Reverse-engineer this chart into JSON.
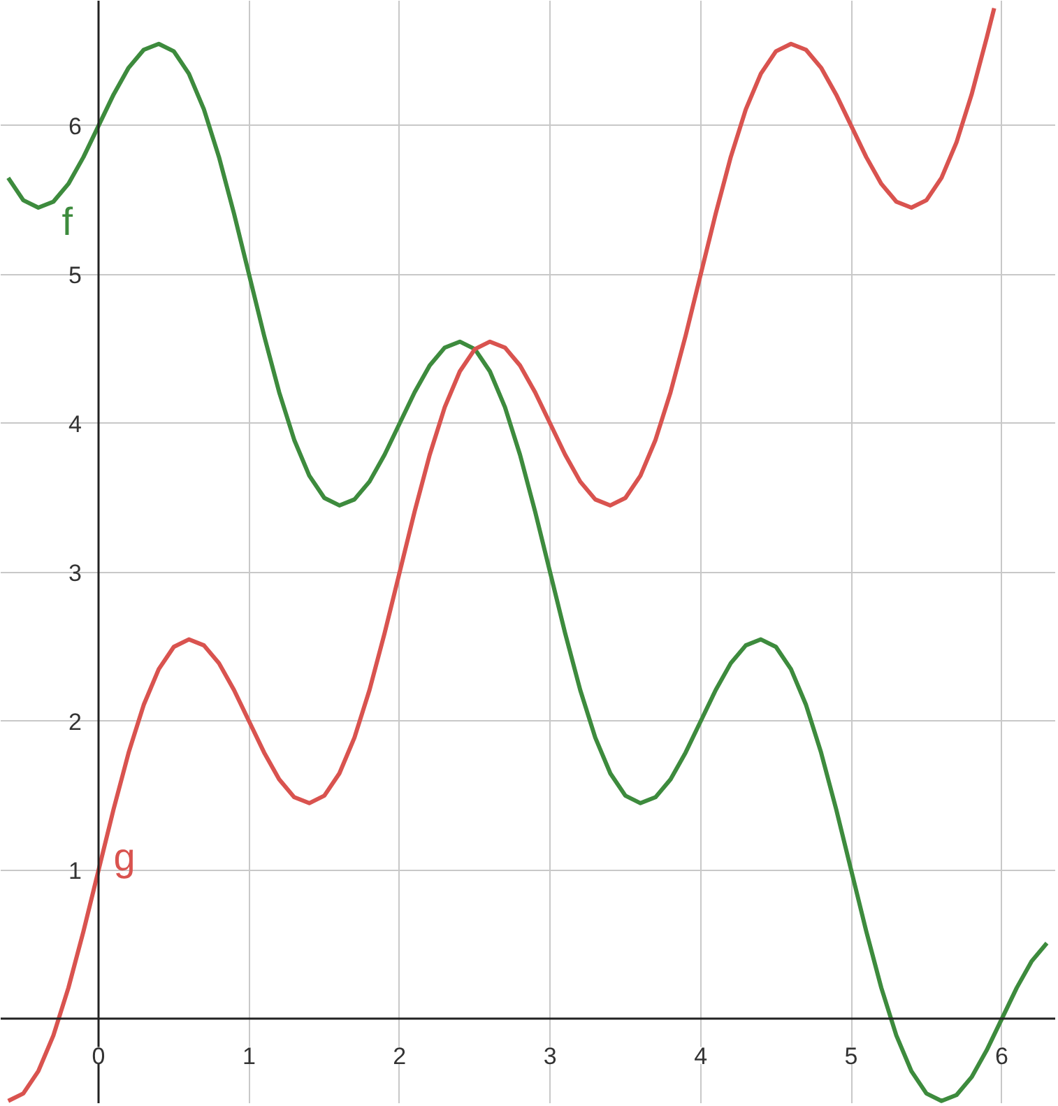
{
  "chart_data": {
    "type": "line",
    "xlim": [
      -0.65,
      6.36
    ],
    "ylim": [
      -0.57,
      6.84
    ],
    "xticks": [
      0,
      1,
      2,
      3,
      4,
      5,
      6
    ],
    "yticks": [
      1,
      2,
      3,
      4,
      5,
      6
    ],
    "grid": true,
    "series": [
      {
        "name": "f",
        "color": "#3d8b3d",
        "x": [
          -0.6,
          -0.5,
          -0.4,
          -0.3,
          -0.2,
          -0.1,
          0,
          0.1,
          0.2,
          0.3,
          0.4,
          0.5,
          0.6,
          0.7,
          0.8,
          0.9,
          1,
          1.1,
          1.2,
          1.3,
          1.4,
          1.5,
          1.6,
          1.7,
          1.8,
          1.9,
          2,
          2.1,
          2.2,
          2.3,
          2.4,
          2.5,
          2.6,
          2.7,
          2.8,
          2.9,
          3,
          3.1,
          3.2,
          3.3,
          3.4,
          3.5,
          3.6,
          3.7,
          3.8,
          3.9,
          4,
          4.1,
          4.2,
          4.3,
          4.4,
          4.5,
          4.6,
          4.7,
          4.8,
          4.9,
          5,
          5.1,
          5.2,
          5.3,
          5.4,
          5.5,
          5.6,
          5.7,
          5.8,
          5.9,
          6,
          6.1,
          6.2,
          6.3
        ],
        "values": [
          5.65,
          5.5,
          5.45,
          5.49,
          5.61,
          5.79,
          6,
          6.21,
          6.39,
          6.51,
          6.55,
          6.5,
          6.35,
          6.11,
          5.79,
          5.41,
          5,
          4.59,
          4.21,
          3.89,
          3.65,
          3.5,
          3.45,
          3.49,
          3.61,
          3.79,
          4,
          4.21,
          4.39,
          4.51,
          4.55,
          4.5,
          4.35,
          4.11,
          3.79,
          3.41,
          3,
          2.59,
          2.21,
          1.89,
          1.65,
          1.5,
          1.45,
          1.49,
          1.61,
          1.79,
          2,
          2.21,
          2.39,
          2.51,
          2.55,
          2.5,
          2.35,
          2.11,
          1.79,
          1.41,
          1,
          0.59,
          0.21,
          -0.11,
          -0.35,
          -0.5,
          -0.55,
          -0.51,
          -0.39,
          -0.21,
          0,
          0.21,
          0.39,
          0.51
        ]
      },
      {
        "name": "g",
        "color": "#d9534f",
        "x": [
          -0.6,
          -0.5,
          -0.4,
          -0.3,
          -0.2,
          -0.1,
          0,
          0.1,
          0.2,
          0.3,
          0.4,
          0.5,
          0.6,
          0.7,
          0.8,
          0.9,
          1,
          1.1,
          1.2,
          1.3,
          1.4,
          1.5,
          1.6,
          1.7,
          1.8,
          1.9,
          2,
          2.1,
          2.2,
          2.3,
          2.4,
          2.5,
          2.6,
          2.7,
          2.8,
          2.9,
          3,
          3.1,
          3.2,
          3.3,
          3.4,
          3.5,
          3.6,
          3.7,
          3.8,
          3.9,
          4,
          4.1,
          4.2,
          4.3,
          4.4,
          4.5,
          4.6,
          4.7,
          4.8,
          4.9,
          5,
          5.1,
          5.2,
          5.3,
          5.4,
          5.5,
          5.6,
          5.7,
          5.8,
          5.9,
          5.95
        ],
        "values": [
          -0.55,
          -0.5,
          -0.35,
          -0.11,
          0.21,
          0.59,
          1,
          1.41,
          1.79,
          2.11,
          2.35,
          2.5,
          2.55,
          2.51,
          2.39,
          2.21,
          2,
          1.79,
          1.61,
          1.49,
          1.45,
          1.5,
          1.65,
          1.89,
          2.21,
          2.59,
          3,
          3.41,
          3.79,
          4.11,
          4.35,
          4.5,
          4.55,
          4.51,
          4.39,
          4.21,
          4,
          3.79,
          3.61,
          3.49,
          3.45,
          3.5,
          3.65,
          3.89,
          4.21,
          4.59,
          5,
          5.41,
          5.79,
          6.11,
          6.35,
          6.5,
          6.55,
          6.51,
          6.39,
          6.21,
          6,
          5.79,
          5.61,
          5.49,
          5.45,
          5.5,
          5.65,
          5.89,
          6.21,
          6.59,
          6.79
        ]
      }
    ]
  }
}
